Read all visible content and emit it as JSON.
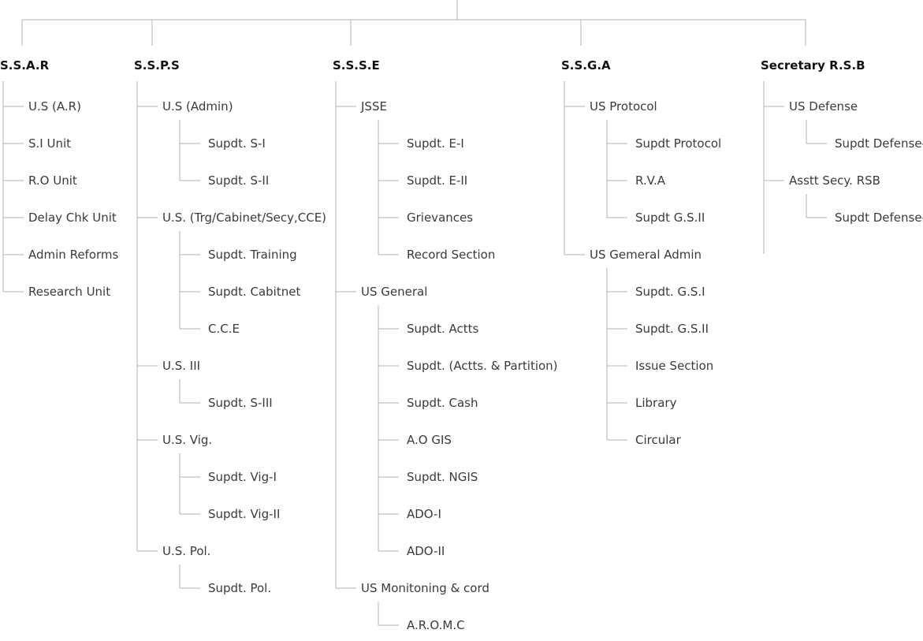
{
  "colors": {
    "line": "#b3b3b3",
    "heading": "#111111",
    "text": "#3a3a3a",
    "background": "#ffffff"
  },
  "columns": [
    {
      "heading": "S.S.A.R",
      "items": [
        {
          "label": "U.S (A.R)",
          "children": []
        },
        {
          "label": "S.I Unit",
          "children": []
        },
        {
          "label": "R.O Unit",
          "children": []
        },
        {
          "label": "Delay Chk Unit",
          "children": []
        },
        {
          "label": "Admin Reforms",
          "children": []
        },
        {
          "label": "Research Unit",
          "children": []
        }
      ]
    },
    {
      "heading": "S.S.P.S",
      "items": [
        {
          "label": "U.S (Admin)",
          "children": [
            "Supdt. S-I",
            "Supdt. S-II"
          ]
        },
        {
          "label": "U.S. (Trg/Cabinet/Secy,CCE)",
          "children": [
            "Supdt. Training",
            "Supdt. Cabitnet",
            "C.C.E"
          ]
        },
        {
          "label": "U.S. III",
          "children": [
            "Supdt. S-III"
          ]
        },
        {
          "label": "U.S. Vig.",
          "children": [
            "Supdt. Vig-I",
            "Supdt. Vig-II"
          ]
        },
        {
          "label": "U.S. Pol.",
          "children": [
            "Supdt. Pol."
          ]
        }
      ]
    },
    {
      "heading": "S.S.S.E",
      "items": [
        {
          "label": "JSSE",
          "children": [
            "Supdt. E-I",
            "Supdt. E-II",
            "Grievances",
            "Record Section"
          ]
        },
        {
          "label": "US General",
          "children": [
            "Supdt. Actts",
            "Supdt. (Actts. & Partition)",
            "Supdt. Cash",
            "A.O GIS",
            "Supdt. NGIS",
            "ADO-I",
            "ADO-II"
          ]
        },
        {
          "label": "US Monitoning & cord",
          "children": [
            "A.R.O.M.C"
          ]
        }
      ]
    },
    {
      "heading": "S.S.G.A",
      "items": [
        {
          "label": "US Protocol",
          "children": [
            "Supdt Protocol",
            "R.V.A",
            "Supdt G.S.II"
          ]
        },
        {
          "label": "US Gemeral Admin",
          "children": [
            "Supdt. G.S.I",
            "Supdt. G.S.II",
            "Issue Section",
            "Library",
            "Circular"
          ]
        }
      ]
    },
    {
      "heading": "Secretary R.S.B",
      "items": [
        {
          "label": "US Defense",
          "children": [
            "Supdt Defense-I"
          ]
        },
        {
          "label": "Asstt Secy. RSB",
          "children": [
            "Supdt Defense-II"
          ]
        }
      ]
    }
  ]
}
